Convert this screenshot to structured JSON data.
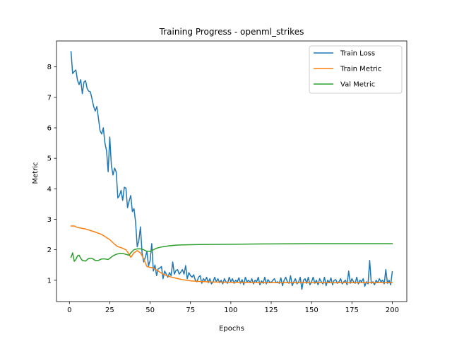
{
  "chart_data": {
    "type": "line",
    "title": "Training Progress - openml_strikes",
    "xlabel": "Epochs",
    "ylabel": "Metric",
    "xlim": [
      -8,
      209
    ],
    "ylim": [
      0.3,
      8.85
    ],
    "xticks": [
      0,
      25,
      50,
      75,
      100,
      125,
      150,
      175,
      200
    ],
    "yticks": [
      1,
      2,
      3,
      4,
      5,
      6,
      7,
      8
    ],
    "grid": false,
    "legend_position": "top-right",
    "series": [
      {
        "name": "Train Loss",
        "color": "#1f77b4",
        "points": [
          [
            1,
            8.5
          ],
          [
            2,
            7.78
          ],
          [
            3,
            7.85
          ],
          [
            4,
            7.9
          ],
          [
            5,
            7.56
          ],
          [
            6,
            7.42
          ],
          [
            7,
            7.58
          ],
          [
            8,
            7.12
          ],
          [
            9,
            7.5
          ],
          [
            10,
            7.55
          ],
          [
            11,
            7.28
          ],
          [
            12,
            7.2
          ],
          [
            13,
            7.18
          ],
          [
            14,
            6.95
          ],
          [
            15,
            6.7
          ],
          [
            16,
            6.55
          ],
          [
            17,
            6.7
          ],
          [
            18,
            6.3
          ],
          [
            19,
            5.9
          ],
          [
            20,
            5.8
          ],
          [
            21,
            6.0
          ],
          [
            22,
            5.5
          ],
          [
            23,
            5.25
          ],
          [
            24,
            4.56
          ],
          [
            25,
            5.7
          ],
          [
            26,
            4.76
          ],
          [
            27,
            4.45
          ],
          [
            28,
            4.68
          ],
          [
            29,
            4.55
          ],
          [
            30,
            3.7
          ],
          [
            31,
            3.78
          ],
          [
            32,
            3.95
          ],
          [
            33,
            3.62
          ],
          [
            34,
            4.05
          ],
          [
            35,
            4.02
          ],
          [
            36,
            3.38
          ],
          [
            37,
            3.6
          ],
          [
            38,
            3.78
          ],
          [
            39,
            3.25
          ],
          [
            40,
            3.35
          ],
          [
            41,
            2.9
          ],
          [
            42,
            2.1
          ],
          [
            43,
            2.3
          ],
          [
            44,
            2.75
          ],
          [
            45,
            1.9
          ],
          [
            46,
            1.6
          ],
          [
            47,
            1.75
          ],
          [
            48,
            1.95
          ],
          [
            49,
            1.47
          ],
          [
            50,
            1.65
          ],
          [
            51,
            2.2
          ],
          [
            52,
            1.3
          ],
          [
            53,
            1.5
          ],
          [
            54,
            1.15
          ],
          [
            55,
            1.38
          ],
          [
            56,
            1.4
          ],
          [
            57,
            1.45
          ],
          [
            58,
            1.05
          ],
          [
            59,
            1.3
          ],
          [
            60,
            1.2
          ],
          [
            61,
            1.1
          ],
          [
            62,
            1.25
          ],
          [
            63,
            1.15
          ],
          [
            64,
            1.6
          ],
          [
            65,
            1.2
          ],
          [
            66,
            1.32
          ],
          [
            67,
            1.35
          ],
          [
            68,
            1.2
          ],
          [
            69,
            1.27
          ],
          [
            70,
            1.35
          ],
          [
            71,
            1.2
          ],
          [
            72,
            1.48
          ],
          [
            73,
            1.05
          ],
          [
            74,
            1.25
          ],
          [
            75,
            1.15
          ],
          [
            76,
            1.1
          ],
          [
            77,
            1.18
          ],
          [
            78,
            1.0
          ],
          [
            79,
            0.95
          ],
          [
            80,
            1.1
          ],
          [
            81,
            1.15
          ],
          [
            82,
            0.9
          ],
          [
            83,
            1.05
          ],
          [
            84,
            0.98
          ],
          [
            85,
            1.1
          ],
          [
            86,
            0.92
          ],
          [
            87,
            1.05
          ],
          [
            88,
            0.88
          ],
          [
            89,
            0.95
          ],
          [
            90,
            1.1
          ],
          [
            91,
            0.95
          ],
          [
            92,
            1.05
          ],
          [
            93,
            0.92
          ],
          [
            94,
            1.0
          ],
          [
            95,
            0.88
          ],
          [
            96,
            1.05
          ],
          [
            97,
            0.95
          ],
          [
            98,
            0.9
          ],
          [
            99,
            1.1
          ],
          [
            100,
            0.95
          ],
          [
            101,
            1.05
          ],
          [
            102,
            0.9
          ],
          [
            103,
            1.0
          ],
          [
            104,
            0.95
          ],
          [
            105,
            1.08
          ],
          [
            106,
            0.9
          ],
          [
            107,
            1.02
          ],
          [
            108,
            0.85
          ],
          [
            109,
            1.1
          ],
          [
            110,
            0.95
          ],
          [
            111,
            1.0
          ],
          [
            112,
            0.92
          ],
          [
            113,
            1.05
          ],
          [
            114,
            0.88
          ],
          [
            115,
            1.0
          ],
          [
            116,
            0.95
          ],
          [
            117,
            1.1
          ],
          [
            118,
            0.85
          ],
          [
            119,
            0.98
          ],
          [
            120,
            0.9
          ],
          [
            121,
            1.1
          ],
          [
            122,
            0.88
          ],
          [
            123,
            1.02
          ],
          [
            124,
            0.95
          ],
          [
            125,
            0.92
          ],
          [
            126,
            1.0
          ],
          [
            127,
            1.05
          ],
          [
            128,
            0.92
          ],
          [
            129,
            0.95
          ],
          [
            130,
            0.9
          ],
          [
            131,
            1.08
          ],
          [
            132,
            0.82
          ],
          [
            133,
            1.0
          ],
          [
            134,
            1.1
          ],
          [
            135,
            0.95
          ],
          [
            136,
            0.9
          ],
          [
            137,
            1.15
          ],
          [
            138,
            0.82
          ],
          [
            139,
            0.95
          ],
          [
            140,
            1.05
          ],
          [
            141,
            0.88
          ],
          [
            142,
            0.95
          ],
          [
            143,
            1.1
          ],
          [
            144,
            0.7
          ],
          [
            145,
            1.0
          ],
          [
            146,
            1.05
          ],
          [
            147,
            0.9
          ],
          [
            148,
            1.1
          ],
          [
            149,
            0.85
          ],
          [
            150,
            0.95
          ],
          [
            151,
            1.1
          ],
          [
            152,
            0.9
          ],
          [
            153,
            1.0
          ],
          [
            154,
            0.85
          ],
          [
            155,
            1.05
          ],
          [
            156,
            0.95
          ],
          [
            157,
            0.88
          ],
          [
            158,
            1.1
          ],
          [
            159,
            0.82
          ],
          [
            160,
            1.0
          ],
          [
            161,
            0.92
          ],
          [
            162,
            1.08
          ],
          [
            163,
            0.85
          ],
          [
            164,
            1.0
          ],
          [
            165,
            1.02
          ],
          [
            166,
            0.9
          ],
          [
            167,
            0.95
          ],
          [
            168,
            1.05
          ],
          [
            169,
            0.88
          ],
          [
            170,
            0.95
          ],
          [
            171,
            1.0
          ],
          [
            172,
            0.85
          ],
          [
            173,
            1.3
          ],
          [
            174,
            0.9
          ],
          [
            175,
            1.05
          ],
          [
            176,
            0.95
          ],
          [
            177,
            0.9
          ],
          [
            178,
            1.1
          ],
          [
            179,
            0.88
          ],
          [
            180,
            1.0
          ],
          [
            181,
            0.95
          ],
          [
            182,
            1.05
          ],
          [
            183,
            0.8
          ],
          [
            184,
            0.95
          ],
          [
            185,
            0.88
          ],
          [
            186,
            1.65
          ],
          [
            187,
            0.9
          ],
          [
            188,
            0.95
          ],
          [
            189,
            0.85
          ],
          [
            190,
            1.0
          ],
          [
            191,
            0.92
          ],
          [
            192,
            1.05
          ],
          [
            193,
            0.95
          ],
          [
            194,
            1.0
          ],
          [
            195,
            0.88
          ],
          [
            196,
            1.35
          ],
          [
            197,
            0.9
          ],
          [
            198,
            1.0
          ],
          [
            199,
            0.85
          ],
          [
            200,
            1.28
          ]
        ]
      },
      {
        "name": "Train Metric",
        "color": "#ff7f0e",
        "points": [
          [
            1,
            2.78
          ],
          [
            3,
            2.78
          ],
          [
            5,
            2.73
          ],
          [
            10,
            2.68
          ],
          [
            15,
            2.6
          ],
          [
            20,
            2.5
          ],
          [
            25,
            2.33
          ],
          [
            28,
            2.18
          ],
          [
            30,
            2.1
          ],
          [
            32,
            2.07
          ],
          [
            35,
            2.0
          ],
          [
            37,
            1.85
          ],
          [
            38,
            1.75
          ],
          [
            40,
            1.9
          ],
          [
            42,
            1.97
          ],
          [
            44,
            1.9
          ],
          [
            46,
            1.7
          ],
          [
            48,
            1.45
          ],
          [
            50,
            1.42
          ],
          [
            52,
            1.4
          ],
          [
            55,
            1.3
          ],
          [
            58,
            1.2
          ],
          [
            62,
            1.12
          ],
          [
            65,
            1.08
          ],
          [
            70,
            1.02
          ],
          [
            75,
            0.98
          ],
          [
            80,
            0.96
          ],
          [
            90,
            0.94
          ],
          [
            100,
            0.93
          ],
          [
            120,
            0.92
          ],
          [
            140,
            0.92
          ],
          [
            160,
            0.92
          ],
          [
            180,
            0.92
          ],
          [
            200,
            0.92
          ]
        ]
      },
      {
        "name": "Val Metric",
        "color": "#2ca02c",
        "points": [
          [
            1,
            1.75
          ],
          [
            2,
            1.9
          ],
          [
            3,
            1.62
          ],
          [
            4,
            1.68
          ],
          [
            5,
            1.8
          ],
          [
            6,
            1.82
          ],
          [
            7,
            1.72
          ],
          [
            8,
            1.65
          ],
          [
            10,
            1.63
          ],
          [
            12,
            1.72
          ],
          [
            14,
            1.72
          ],
          [
            16,
            1.65
          ],
          [
            18,
            1.65
          ],
          [
            20,
            1.7
          ],
          [
            22,
            1.7
          ],
          [
            24,
            1.68
          ],
          [
            25,
            1.72
          ],
          [
            27,
            1.8
          ],
          [
            29,
            1.85
          ],
          [
            31,
            1.88
          ],
          [
            33,
            1.88
          ],
          [
            35,
            1.85
          ],
          [
            37,
            1.82
          ],
          [
            38,
            1.9
          ],
          [
            40,
            2.0
          ],
          [
            42,
            2.03
          ],
          [
            44,
            2.03
          ],
          [
            46,
            2.0
          ],
          [
            48,
            1.95
          ],
          [
            50,
            1.95
          ],
          [
            52,
            2.0
          ],
          [
            54,
            2.05
          ],
          [
            56,
            2.08
          ],
          [
            58,
            2.1
          ],
          [
            62,
            2.13
          ],
          [
            66,
            2.15
          ],
          [
            70,
            2.16
          ],
          [
            80,
            2.17
          ],
          [
            100,
            2.18
          ],
          [
            120,
            2.19
          ],
          [
            150,
            2.2
          ],
          [
            180,
            2.2
          ],
          [
            200,
            2.2
          ]
        ]
      }
    ]
  }
}
